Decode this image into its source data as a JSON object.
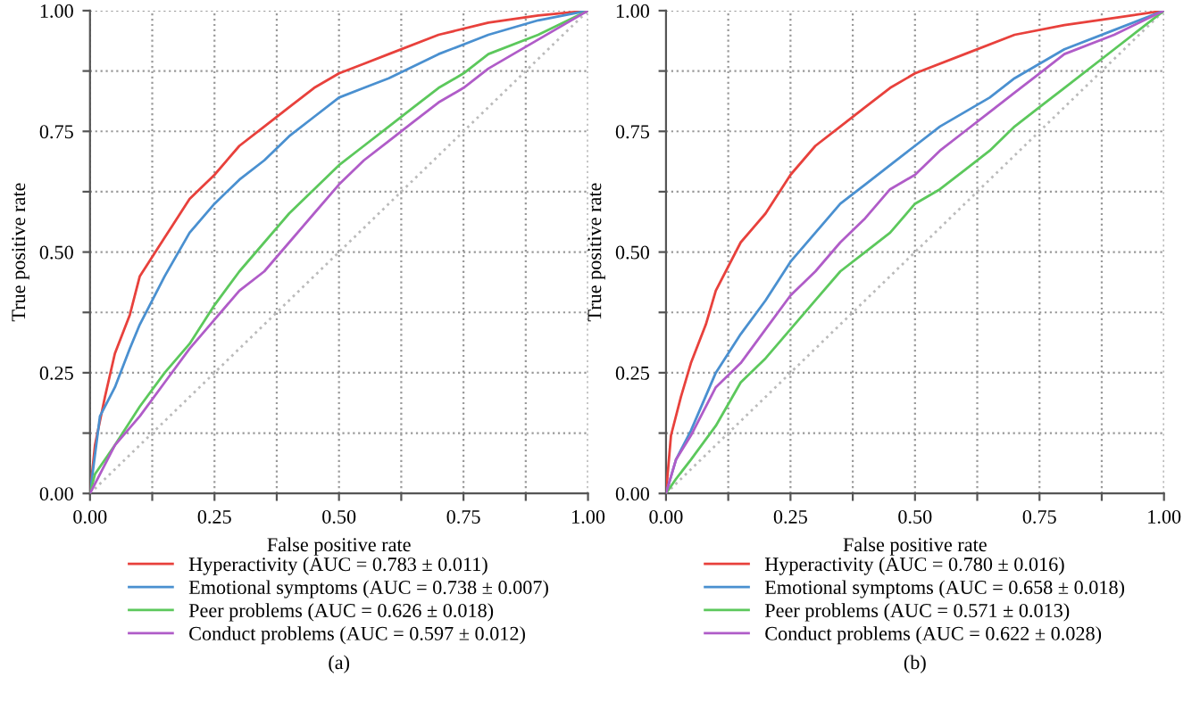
{
  "chart_data": [
    {
      "type": "line",
      "xlabel": "False positive rate",
      "ylabel": "True positive rate",
      "xlim": [
        0,
        1
      ],
      "ylim": [
        0,
        1
      ],
      "xticks": [
        {
          "value": 0,
          "label": "0.00"
        },
        {
          "value": 0.125,
          "label": null
        },
        {
          "value": 0.25,
          "label": "0.25"
        },
        {
          "value": 0.375,
          "label": null
        },
        {
          "value": 0.5,
          "label": "0.50"
        },
        {
          "value": 0.625,
          "label": null
        },
        {
          "value": 0.75,
          "label": "0.75"
        },
        {
          "value": 0.875,
          "label": null
        },
        {
          "value": 1,
          "label": "1.00"
        }
      ],
      "yticks": [
        {
          "value": 0,
          "label": "0.00"
        },
        {
          "value": 0.125,
          "label": null
        },
        {
          "value": 0.25,
          "label": "0.25"
        },
        {
          "value": 0.375,
          "label": null
        },
        {
          "value": 0.5,
          "label": "0.50"
        },
        {
          "value": 0.625,
          "label": null
        },
        {
          "value": 0.75,
          "label": "0.75"
        },
        {
          "value": 0.875,
          "label": null
        },
        {
          "value": 1,
          "label": "1.00"
        }
      ],
      "grid": true,
      "legend": "bottom",
      "line_style": "solid",
      "marker": "none",
      "annotations": [
        "(a)"
      ],
      "series": [
        {
          "name": "Hyperactivity (AUC = 0.783 ± 0.011)",
          "color": "#e8413c",
          "x": [
            0,
            0.01,
            0.03,
            0.05,
            0.08,
            0.1,
            0.15,
            0.2,
            0.25,
            0.3,
            0.35,
            0.4,
            0.45,
            0.5,
            0.55,
            0.6,
            0.7,
            0.8,
            0.9,
            1
          ],
          "values": [
            0,
            0.1,
            0.2,
            0.29,
            0.37,
            0.45,
            0.53,
            0.61,
            0.66,
            0.72,
            0.76,
            0.8,
            0.84,
            0.87,
            0.89,
            0.91,
            0.95,
            0.975,
            0.99,
            1
          ]
        },
        {
          "name": "Emotional symptoms (AUC = 0.738 ± 0.007)",
          "color": "#4a90d0",
          "x": [
            0,
            0.01,
            0.02,
            0.05,
            0.08,
            0.1,
            0.15,
            0.2,
            0.25,
            0.3,
            0.35,
            0.4,
            0.45,
            0.5,
            0.55,
            0.6,
            0.7,
            0.8,
            0.9,
            1
          ],
          "values": [
            0,
            0.08,
            0.16,
            0.22,
            0.3,
            0.35,
            0.45,
            0.54,
            0.6,
            0.65,
            0.69,
            0.74,
            0.78,
            0.82,
            0.84,
            0.86,
            0.91,
            0.95,
            0.98,
            1
          ]
        },
        {
          "name": "Peer problems (AUC = 0.626 ± 0.018)",
          "color": "#5cc85c",
          "x": [
            0,
            0.01,
            0.05,
            0.1,
            0.15,
            0.2,
            0.25,
            0.3,
            0.35,
            0.4,
            0.45,
            0.5,
            0.55,
            0.6,
            0.65,
            0.7,
            0.75,
            0.8,
            0.9,
            1
          ],
          "values": [
            0,
            0.04,
            0.1,
            0.18,
            0.25,
            0.31,
            0.39,
            0.46,
            0.52,
            0.58,
            0.63,
            0.68,
            0.72,
            0.76,
            0.8,
            0.84,
            0.87,
            0.91,
            0.95,
            1
          ]
        },
        {
          "name": "Conduct problems (AUC = 0.597 ± 0.012)",
          "color": "#b05cc8",
          "x": [
            0,
            0.02,
            0.05,
            0.1,
            0.15,
            0.2,
            0.25,
            0.3,
            0.35,
            0.4,
            0.45,
            0.5,
            0.55,
            0.6,
            0.65,
            0.7,
            0.75,
            0.8,
            0.9,
            1
          ],
          "values": [
            0,
            0.04,
            0.1,
            0.16,
            0.23,
            0.3,
            0.36,
            0.42,
            0.46,
            0.52,
            0.58,
            0.64,
            0.69,
            0.73,
            0.77,
            0.81,
            0.84,
            0.88,
            0.94,
            1
          ]
        },
        {
          "color": "#bbbbbb",
          "line_style": "dotted",
          "x": [
            0,
            1
          ],
          "values": [
            0,
            1
          ]
        }
      ]
    },
    {
      "type": "line",
      "xlabel": "False positive rate",
      "ylabel": "True positive rate",
      "xlim": [
        0,
        1
      ],
      "ylim": [
        0,
        1
      ],
      "xticks": [
        {
          "value": 0,
          "label": "0.00"
        },
        {
          "value": 0.125,
          "label": null
        },
        {
          "value": 0.25,
          "label": "0.25"
        },
        {
          "value": 0.375,
          "label": null
        },
        {
          "value": 0.5,
          "label": "0.50"
        },
        {
          "value": 0.625,
          "label": null
        },
        {
          "value": 0.75,
          "label": "0.75"
        },
        {
          "value": 0.875,
          "label": null
        },
        {
          "value": 1,
          "label": "1.00"
        }
      ],
      "yticks": [
        {
          "value": 0,
          "label": "0.00"
        },
        {
          "value": 0.125,
          "label": null
        },
        {
          "value": 0.25,
          "label": "0.25"
        },
        {
          "value": 0.375,
          "label": null
        },
        {
          "value": 0.5,
          "label": "0.50"
        },
        {
          "value": 0.625,
          "label": null
        },
        {
          "value": 0.75,
          "label": "0.75"
        },
        {
          "value": 0.875,
          "label": null
        },
        {
          "value": 1,
          "label": "1.00"
        }
      ],
      "grid": true,
      "legend": "bottom",
      "line_style": "solid",
      "marker": "none",
      "annotations": [
        "(b)"
      ],
      "series": [
        {
          "name": "Hyperactivity (AUC = 0.780 ± 0.016)",
          "color": "#e8413c",
          "x": [
            0,
            0.01,
            0.03,
            0.05,
            0.08,
            0.1,
            0.15,
            0.2,
            0.25,
            0.3,
            0.35,
            0.4,
            0.45,
            0.5,
            0.6,
            0.7,
            0.8,
            0.9,
            1
          ],
          "values": [
            0,
            0.12,
            0.2,
            0.27,
            0.35,
            0.42,
            0.52,
            0.58,
            0.66,
            0.72,
            0.76,
            0.8,
            0.84,
            0.87,
            0.91,
            0.95,
            0.97,
            0.985,
            1
          ]
        },
        {
          "name": "Emotional symptoms (AUC = 0.658 ± 0.018)",
          "color": "#4a90d0",
          "x": [
            0,
            0.02,
            0.05,
            0.1,
            0.15,
            0.2,
            0.25,
            0.3,
            0.35,
            0.4,
            0.45,
            0.5,
            0.55,
            0.6,
            0.65,
            0.7,
            0.75,
            0.8,
            0.9,
            1
          ],
          "values": [
            0,
            0.07,
            0.13,
            0.25,
            0.33,
            0.4,
            0.48,
            0.54,
            0.6,
            0.64,
            0.68,
            0.72,
            0.76,
            0.79,
            0.82,
            0.86,
            0.89,
            0.92,
            0.96,
            1
          ]
        },
        {
          "name": "Peer problems (AUC = 0.571 ± 0.013)",
          "color": "#5cc85c",
          "x": [
            0,
            0.02,
            0.05,
            0.1,
            0.15,
            0.2,
            0.25,
            0.3,
            0.35,
            0.4,
            0.45,
            0.5,
            0.55,
            0.6,
            0.65,
            0.7,
            0.75,
            0.8,
            0.9,
            1
          ],
          "values": [
            0,
            0.03,
            0.07,
            0.14,
            0.23,
            0.28,
            0.34,
            0.4,
            0.46,
            0.5,
            0.54,
            0.6,
            0.63,
            0.67,
            0.71,
            0.76,
            0.8,
            0.84,
            0.92,
            1
          ]
        },
        {
          "name": "Conduct problems (AUC = 0.622 ± 0.028)",
          "color": "#b05cc8",
          "x": [
            0,
            0.02,
            0.05,
            0.1,
            0.15,
            0.2,
            0.25,
            0.3,
            0.35,
            0.4,
            0.45,
            0.5,
            0.55,
            0.6,
            0.65,
            0.7,
            0.75,
            0.8,
            0.9,
            1
          ],
          "values": [
            0,
            0.07,
            0.12,
            0.22,
            0.27,
            0.34,
            0.41,
            0.46,
            0.52,
            0.57,
            0.63,
            0.66,
            0.71,
            0.75,
            0.79,
            0.83,
            0.87,
            0.91,
            0.95,
            1
          ]
        },
        {
          "color": "#bbbbbb",
          "line_style": "dotted",
          "x": [
            0,
            1
          ],
          "values": [
            0,
            1
          ]
        }
      ]
    }
  ]
}
